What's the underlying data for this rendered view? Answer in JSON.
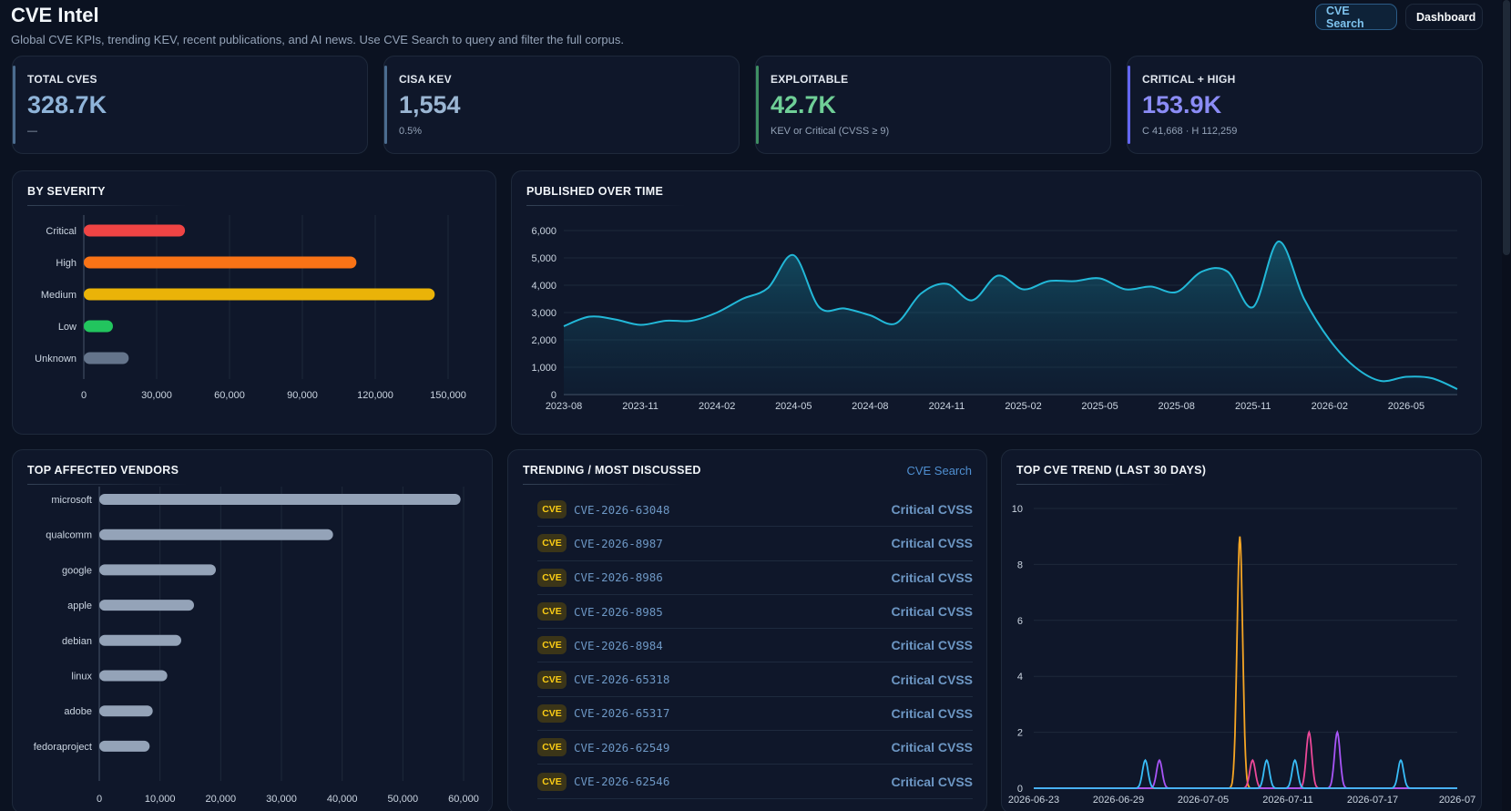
{
  "header": {
    "title": "CVE Intel",
    "subtitle": "Global CVE KPIs, trending KEV, recent publications, and AI news. Use CVE Search to query and filter the full corpus.",
    "nav": {
      "search_label": "CVE Search",
      "dashboard_label": "Dashboard"
    }
  },
  "kpis": [
    {
      "label": "TOTAL CVES",
      "value": "328.7K",
      "sub": "—",
      "color": "#8fb4d9"
    },
    {
      "label": "CISA KEV",
      "value": "1,554",
      "sub": "0.5%",
      "color": "#9bb6d3"
    },
    {
      "label": "EXPLOITABLE",
      "value": "42.7K",
      "sub": "KEV or Critical (CVSS ≥ 9)",
      "color": "#6fcf97"
    },
    {
      "label": "CRITICAL + HIGH",
      "value": "153.9K",
      "sub": "C 41,668 · H 112,259",
      "color": "#8b8cf6"
    }
  ],
  "panels": {
    "severity_title": "BY SEVERITY",
    "published_title": "PUBLISHED OVER TIME",
    "vendors_title": "TOP AFFECTED VENDORS",
    "trending_title": "TRENDING / MOST DISCUSSED",
    "trending_link": "CVE Search",
    "cve_trend_title": "TOP CVE TREND (LAST 30 DAYS)"
  },
  "trending": [
    {
      "badge": "CVE",
      "id": "CVE-2026-63048",
      "severity": "Critical CVSS"
    },
    {
      "badge": "CVE",
      "id": "CVE-2026-8987",
      "severity": "Critical CVSS"
    },
    {
      "badge": "CVE",
      "id": "CVE-2026-8986",
      "severity": "Critical CVSS"
    },
    {
      "badge": "CVE",
      "id": "CVE-2026-8985",
      "severity": "Critical CVSS"
    },
    {
      "badge": "CVE",
      "id": "CVE-2026-8984",
      "severity": "Critical CVSS"
    },
    {
      "badge": "CVE",
      "id": "CVE-2026-65318",
      "severity": "Critical CVSS"
    },
    {
      "badge": "CVE",
      "id": "CVE-2026-65317",
      "severity": "Critical CVSS"
    },
    {
      "badge": "CVE",
      "id": "CVE-2026-62549",
      "severity": "Critical CVSS"
    },
    {
      "badge": "CVE",
      "id": "CVE-2026-62546",
      "severity": "Critical CVSS"
    }
  ],
  "chart_data": [
    {
      "type": "bar",
      "orientation": "horizontal",
      "categories": [
        "Critical",
        "High",
        "Medium",
        "Low",
        "Unknown"
      ],
      "values": [
        41668,
        112259,
        144500,
        12000,
        18500
      ],
      "colors": [
        "#ef4444",
        "#f97316",
        "#eab308",
        "#22c55e",
        "#64748b"
      ],
      "xlim": [
        0,
        150000
      ],
      "xticks": [
        "0",
        "30,000",
        "60,000",
        "90,000",
        "120,000",
        "150,000"
      ],
      "grid": true
    },
    {
      "type": "area",
      "x": [
        "2023-08",
        "2023-09",
        "2023-10",
        "2023-11",
        "2023-12",
        "2024-01",
        "2024-02",
        "2024-03",
        "2024-04",
        "2024-05",
        "2024-06",
        "2024-07",
        "2024-08",
        "2024-09",
        "2024-10",
        "2024-11",
        "2024-12",
        "2025-01",
        "2025-02",
        "2025-03",
        "2025-04",
        "2025-05",
        "2025-06",
        "2025-07",
        "2025-08",
        "2025-09",
        "2025-10",
        "2025-11",
        "2025-12",
        "2026-01",
        "2026-02",
        "2026-03",
        "2026-04",
        "2026-05",
        "2026-06",
        "2026-07"
      ],
      "values": [
        2500,
        2850,
        2750,
        2550,
        2700,
        2700,
        3000,
        3500,
        3900,
        5100,
        3200,
        3150,
        2900,
        2600,
        3700,
        4050,
        3450,
        4350,
        3850,
        4150,
        4150,
        4250,
        3850,
        3950,
        3750,
        4500,
        4500,
        3200,
        5600,
        3500,
        2000,
        1000,
        500,
        650,
        600,
        200
      ],
      "ylim": [
        0,
        6000
      ],
      "yticks": [
        "0",
        "1,000",
        "2,000",
        "3,000",
        "4,000",
        "5,000",
        "6,000"
      ],
      "xticks": [
        "2023-08",
        "2023-11",
        "2024-02",
        "2024-05",
        "2024-08",
        "2024-11",
        "2025-02",
        "2025-05",
        "2025-08",
        "2025-11",
        "2026-02",
        "2026-05"
      ],
      "color": "#22b8d8",
      "grid": true
    },
    {
      "type": "bar",
      "orientation": "horizontal",
      "categories": [
        "microsoft",
        "qualcomm",
        "google",
        "apple",
        "debian",
        "linux",
        "adobe",
        "fedoraproject"
      ],
      "values": [
        59500,
        38500,
        19200,
        15600,
        13500,
        11200,
        8800,
        8300
      ],
      "color": "#94a3b8",
      "xlim": [
        0,
        60000
      ],
      "xticks": [
        "0",
        "10,000",
        "20,000",
        "30,000",
        "40,000",
        "50,000",
        "60,000"
      ],
      "grid": true
    },
    {
      "type": "line",
      "ylim": [
        0,
        10
      ],
      "yticks": [
        "0",
        "2",
        "4",
        "6",
        "8",
        "10"
      ],
      "xticks": [
        "2026-06-23",
        "2026-06-29",
        "2026-07-05",
        "2026-07-11",
        "2026-07-17",
        "2026-07"
      ],
      "series": [
        {
          "color": "#f5a524",
          "peaks": [
            {
              "day": 14.6,
              "value": 9.0
            }
          ]
        },
        {
          "color": "#ec4899",
          "peaks": [
            {
              "day": 15.5,
              "value": 1.0
            },
            {
              "day": 19.5,
              "value": 2.0
            }
          ]
        },
        {
          "color": "#a855f7",
          "peaks": [
            {
              "day": 8.9,
              "value": 1.0
            },
            {
              "day": 21.5,
              "value": 2.0
            }
          ]
        },
        {
          "color": "#38bdf8",
          "peaks": [
            {
              "day": 7.9,
              "value": 1.0
            },
            {
              "day": 16.5,
              "value": 1.0
            },
            {
              "day": 18.5,
              "value": 1.0
            },
            {
              "day": 26.0,
              "value": 1.0
            }
          ]
        }
      ],
      "grid": true
    }
  ]
}
